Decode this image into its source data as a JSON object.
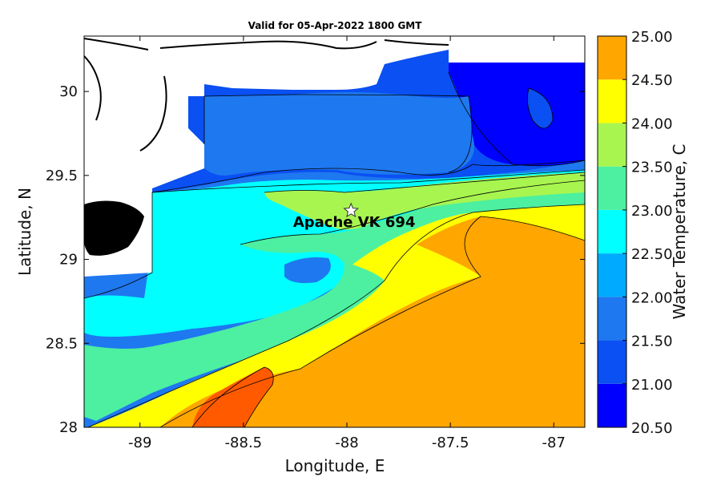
{
  "chart_data": {
    "type": "heatmap",
    "subtype": "filled-contour map",
    "title": "Valid for 05-Apr-2022 1800 GMT",
    "xlabel": "Longitude, E",
    "ylabel": "Latitude, N",
    "xlim": [
      -89.27,
      -86.85
    ],
    "ylim": [
      28.0,
      30.33
    ],
    "x_ticks": [
      -89,
      -88.5,
      -88,
      -87.5,
      -87
    ],
    "x_tick_labels": [
      "-89",
      "-88.5",
      "-88",
      "-87.5",
      "-87"
    ],
    "y_ticks": [
      28,
      28.5,
      29,
      29.5,
      30
    ],
    "y_tick_labels": [
      "28",
      "28.5",
      "29",
      "29.5",
      "30"
    ],
    "colorbar": {
      "label": "Water Temperature, C",
      "levels": [
        20.5,
        21.0,
        21.5,
        22.0,
        22.5,
        23.0,
        23.5,
        24.0,
        24.5,
        25.0
      ],
      "level_labels": [
        "20.50",
        "21.00",
        "21.50",
        "22.00",
        "22.50",
        "23.00",
        "23.50",
        "24.00",
        "24.50",
        "25.00"
      ],
      "colors": [
        "#0000ff",
        "#0a50f2",
        "#1e78f0",
        "#00aaff",
        "#00ffff",
        "#4cf0a0",
        "#a8f550",
        "#ffff00",
        "#ffa600",
        "#ff5a00"
      ]
    },
    "annotations": [
      {
        "text": "Apache VK 694",
        "lon": -87.98,
        "lat": 29.29,
        "marker": "star"
      }
    ],
    "land_color": "#000000",
    "no_data_color": "#ffffff",
    "grid": false
  }
}
